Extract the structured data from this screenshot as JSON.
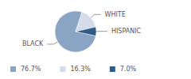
{
  "chart_data": {
    "type": "pie",
    "categories": [
      "BLACK",
      "WHITE",
      "HISPANIC"
    ],
    "values": [
      76.7,
      16.3,
      7.0
    ],
    "value_labels": [
      "76.7%",
      "16.3%",
      "7.0%"
    ],
    "colors": [
      "#8aa4c4",
      "#d3dce8",
      "#2f5b84"
    ],
    "legend": "bottom"
  }
}
